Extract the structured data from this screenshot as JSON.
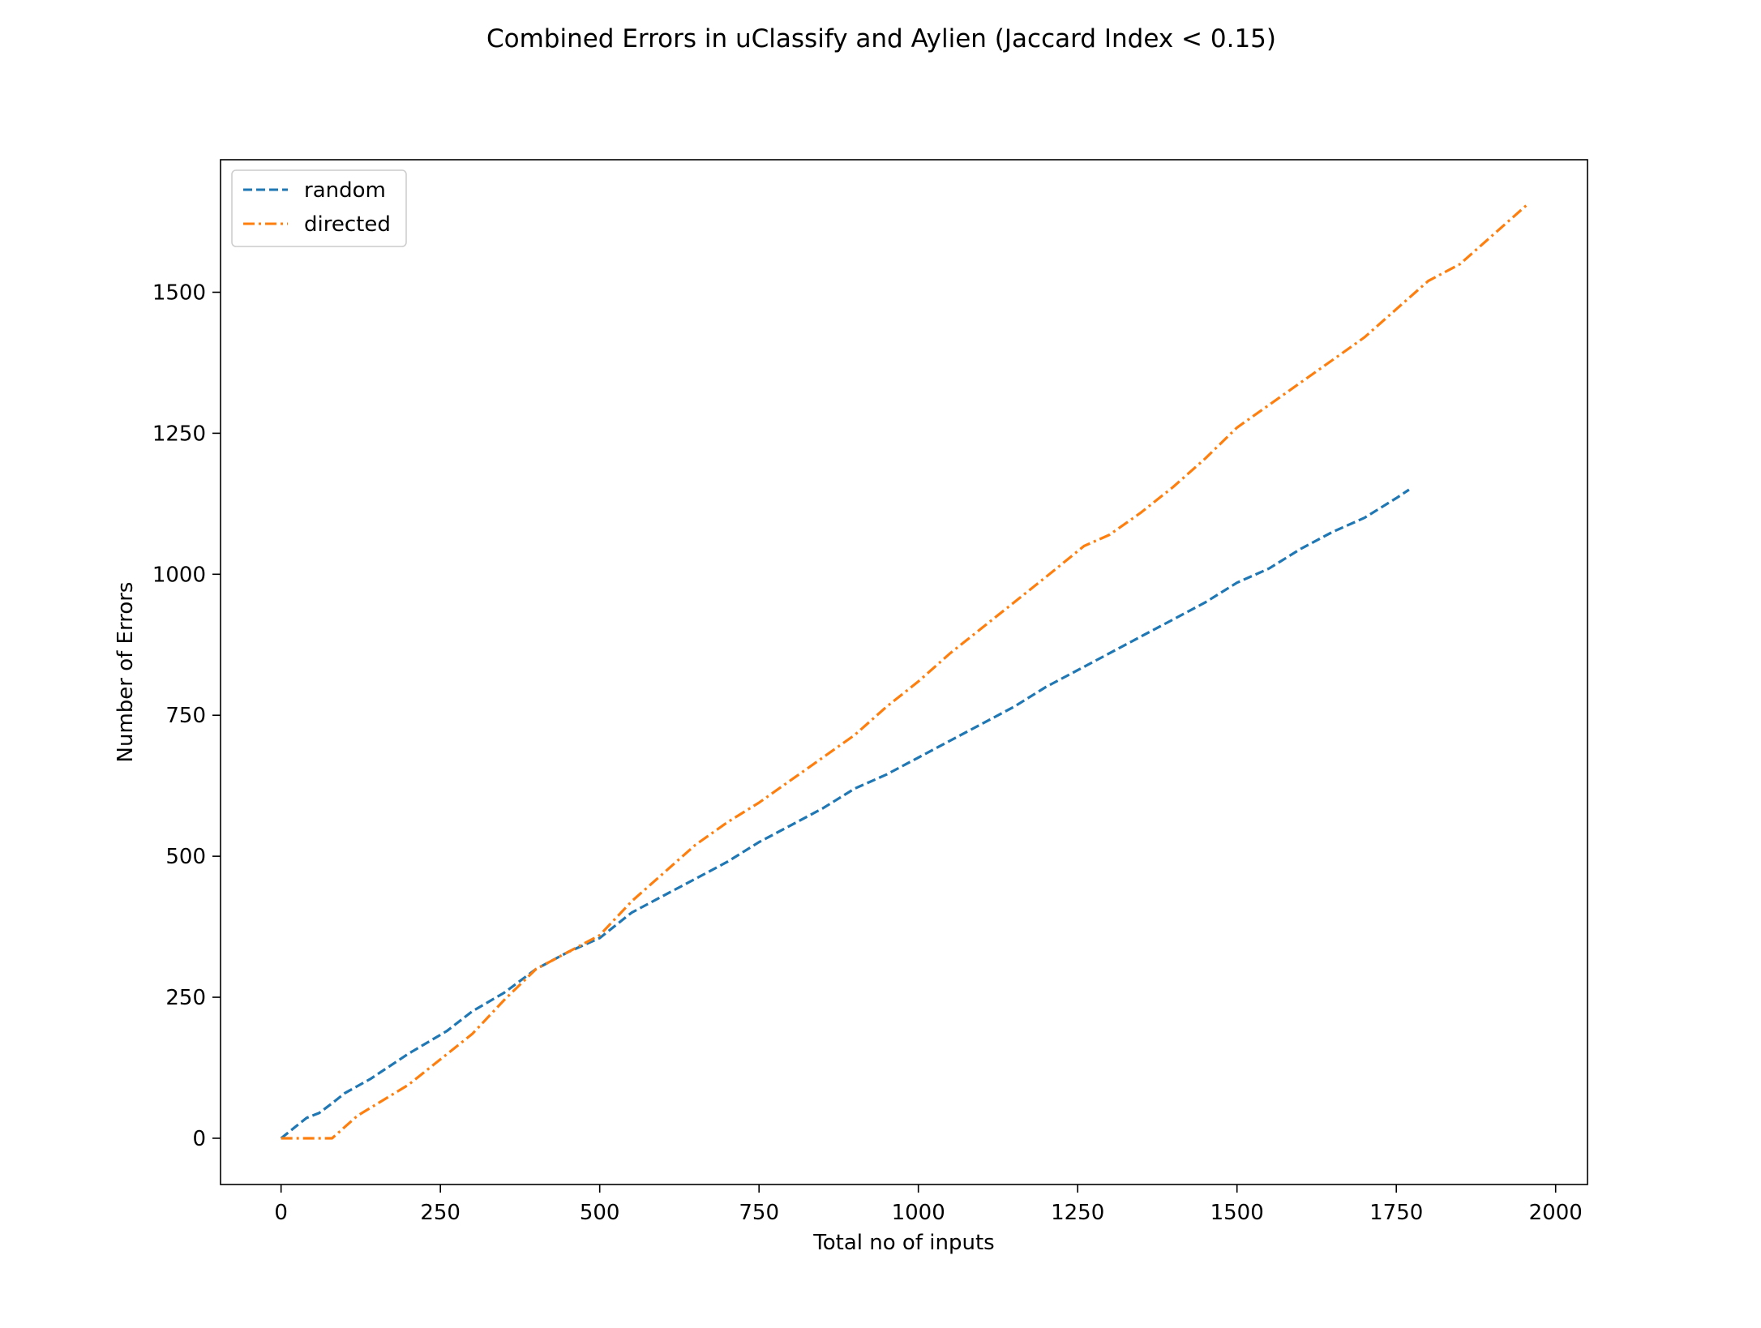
{
  "chart_data": {
    "type": "line",
    "title": "Combined Errors in uClassify and Aylien (Jaccard Index < 0.15)",
    "xlabel": "Total no of inputs",
    "ylabel": "Number of Errors",
    "xlim": [
      -95,
      2050
    ],
    "ylim": [
      -82,
      1735
    ],
    "xticks": [
      0,
      250,
      500,
      750,
      1000,
      1250,
      1500,
      1750,
      2000
    ],
    "yticks": [
      0,
      250,
      500,
      750,
      1000,
      1250,
      1500
    ],
    "grid": false,
    "legend": "top-left",
    "series": [
      {
        "name": "random",
        "color": "#1f77b4",
        "linestyle": "dashed",
        "x": [
          0,
          20,
          40,
          60,
          80,
          100,
          140,
          200,
          260,
          300,
          350,
          400,
          450,
          500,
          550,
          600,
          650,
          700,
          750,
          800,
          850,
          900,
          950,
          1000,
          1050,
          1100,
          1150,
          1200,
          1250,
          1300,
          1350,
          1400,
          1450,
          1500,
          1550,
          1600,
          1650,
          1700,
          1750,
          1770
        ],
        "y": [
          0,
          18,
          36,
          45,
          62,
          80,
          105,
          150,
          190,
          225,
          258,
          300,
          330,
          355,
          400,
          430,
          460,
          490,
          525,
          555,
          585,
          620,
          645,
          675,
          705,
          735,
          765,
          800,
          830,
          860,
          890,
          920,
          950,
          985,
          1010,
          1045,
          1075,
          1100,
          1135,
          1150
        ]
      },
      {
        "name": "directed",
        "color": "#ff7f0e",
        "linestyle": "dashdot",
        "x": [
          0,
          40,
          80,
          120,
          200,
          250,
          300,
          350,
          400,
          450,
          500,
          550,
          600,
          650,
          700,
          750,
          800,
          850,
          900,
          950,
          1000,
          1050,
          1100,
          1150,
          1200,
          1260,
          1290,
          1300,
          1350,
          1400,
          1450,
          1500,
          1550,
          1600,
          1650,
          1700,
          1750,
          1800,
          1850,
          1900,
          1955
        ],
        "y": [
          0,
          0,
          0,
          40,
          95,
          140,
          185,
          245,
          300,
          330,
          360,
          420,
          470,
          520,
          560,
          595,
          635,
          675,
          715,
          765,
          810,
          860,
          905,
          950,
          995,
          1050,
          1065,
          1070,
          1110,
          1155,
          1205,
          1260,
          1300,
          1340,
          1380,
          1420,
          1470,
          1520,
          1550,
          1600,
          1655
        ]
      }
    ]
  }
}
